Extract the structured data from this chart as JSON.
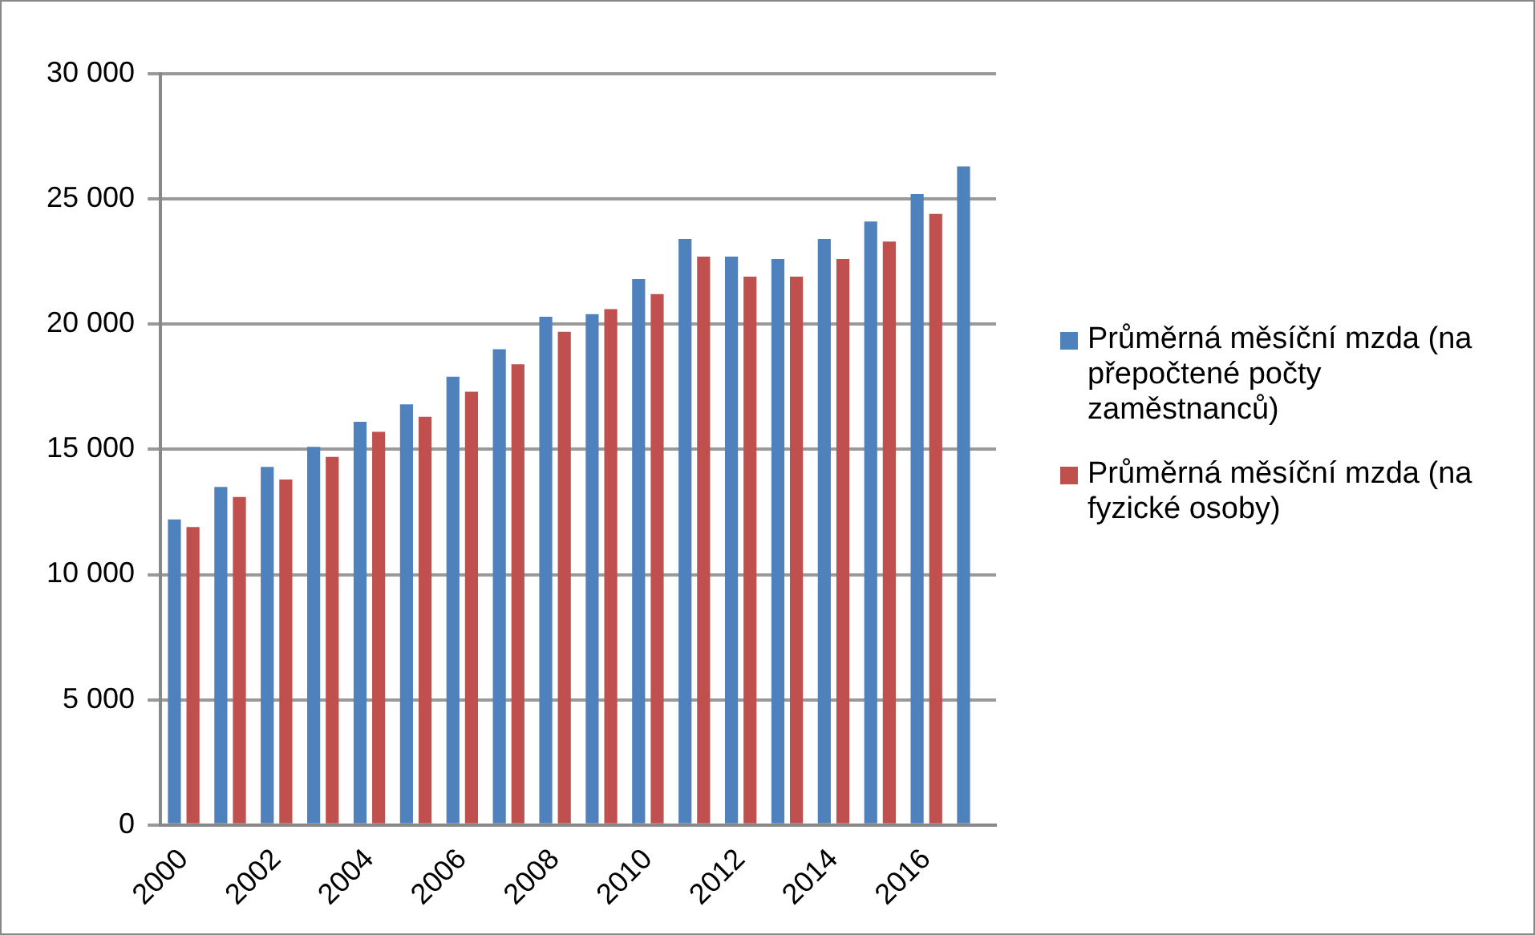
{
  "chart_data": {
    "type": "bar",
    "categories": [
      "2000",
      null,
      "2002",
      null,
      "2004",
      null,
      "2006",
      null,
      "2008",
      null,
      "2010",
      null,
      "2012",
      null,
      "2014",
      null,
      "2016",
      null
    ],
    "series": [
      {
        "name": "Průměrná měsíční mzda (na přepočtené počty zaměstnanců)",
        "color": "#4f81bd",
        "values": [
          12200,
          13500,
          14300,
          15100,
          16100,
          16800,
          17900,
          19000,
          20300,
          20400,
          21800,
          23400,
          22700,
          22600,
          23400,
          24100,
          25200,
          26300
        ]
      },
      {
        "name": "Průměrná měsíční mzda (na fyzické osoby)",
        "color": "#c0504d",
        "values": [
          11900,
          13100,
          13800,
          14700,
          15700,
          16300,
          17300,
          18400,
          19700,
          20600,
          21200,
          22700,
          21900,
          21900,
          22600,
          23300,
          24400,
          null
        ]
      }
    ],
    "ylim": [
      0,
      30000
    ],
    "yticks": [
      {
        "value": 0,
        "label": "0"
      },
      {
        "value": 5000,
        "label": "5 000"
      },
      {
        "value": 10000,
        "label": "10 000"
      },
      {
        "value": 15000,
        "label": "15 000"
      },
      {
        "value": 20000,
        "label": "20 000"
      },
      {
        "value": 25000,
        "label": "25 000"
      },
      {
        "value": 30000,
        "label": "30 000"
      }
    ],
    "grid": "y",
    "legend": "right"
  }
}
